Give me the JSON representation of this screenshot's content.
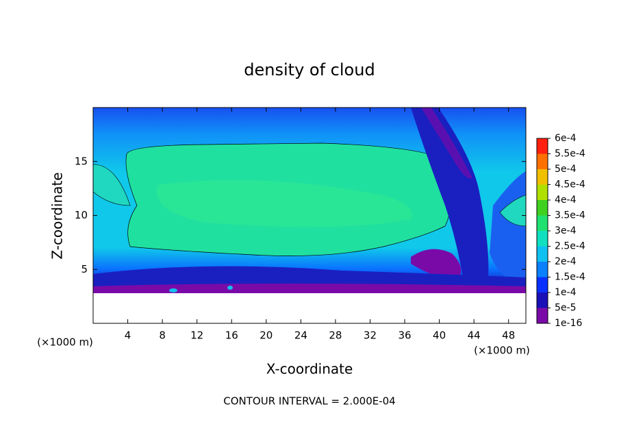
{
  "chart_data": {
    "type": "contour",
    "title": "density of cloud",
    "x_label": "X-coordinate",
    "y_label": "Z-coordinate",
    "x_unit": "(×1000 m)",
    "x_unit_right": "(×1000 m)",
    "footer": "CONTOUR INTERVAL = 2.000E-04",
    "xlim": [
      0,
      50
    ],
    "xticks": [
      4,
      8,
      12,
      16,
      20,
      24,
      28,
      32,
      36,
      40,
      44,
      48
    ],
    "ylim": [
      0,
      20
    ],
    "yticks": [
      5,
      10,
      15
    ],
    "colorbar": {
      "ticks": [
        {
          "value": 1e-16,
          "label": "1e-16"
        },
        {
          "value": 5e-05,
          "label": "5e-5"
        },
        {
          "value": 0.0001,
          "label": "1e-4"
        },
        {
          "value": 0.00015,
          "label": "1.5e-4"
        },
        {
          "value": 0.0002,
          "label": "2e-4"
        },
        {
          "value": 0.00025,
          "label": "2.5e-4"
        },
        {
          "value": 0.0003,
          "label": "3e-4"
        },
        {
          "value": 0.00035,
          "label": "3.5e-4"
        },
        {
          "value": 0.0004,
          "label": "4e-4"
        },
        {
          "value": 0.00045,
          "label": "4.5e-4"
        },
        {
          "value": 0.0005,
          "label": "5e-4"
        },
        {
          "value": 0.00055,
          "label": "5.5e-4"
        },
        {
          "value": 0.0006,
          "label": "6e-4"
        }
      ],
      "colors": [
        "#7a0aa8",
        "#1a10b8",
        "#0a30ff",
        "#0a80ff",
        "#10c0f0",
        "#10e0c0",
        "#20e070",
        "#40d020",
        "#b0e000",
        "#f0c000",
        "#ff7000",
        "#ff2010"
      ]
    }
  }
}
